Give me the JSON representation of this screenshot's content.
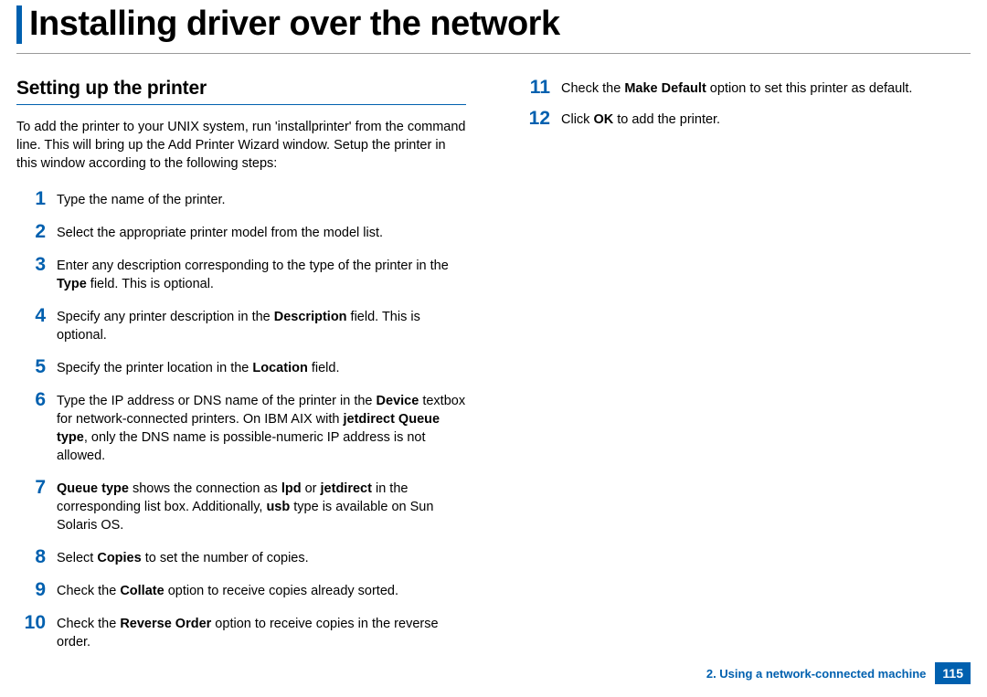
{
  "title": "Installing driver over the network",
  "accent_color": "#0060af",
  "section_heading": "Setting up the printer",
  "intro": "To add the printer to your UNIX system, run 'installprinter' from the command line. This will bring up the Add Printer Wizard window. Setup the printer in this window according to the following steps:",
  "steps_left": [
    {
      "n": "1",
      "html": "Type the name of the printer."
    },
    {
      "n": "2",
      "html": "Select the appropriate printer model from the model list."
    },
    {
      "n": "3",
      "html": "Enter any description corresponding to the type of the printer in the <b>Type</b> field. This is optional."
    },
    {
      "n": "4",
      "html": "Specify any printer description in the <b>Description</b> field. This is optional."
    },
    {
      "n": "5",
      "html": "Specify the printer location in the <b>Location</b> field."
    },
    {
      "n": "6",
      "html": "Type the IP address or DNS name of the printer in the <b>Device</b> textbox for network-connected printers. On IBM AIX with <b>jetdirect Queue type</b>, only the DNS name is possible-numeric IP address is not allowed."
    },
    {
      "n": "7",
      "html": "<b>Queue type</b> shows the connection as <b>lpd</b> or <b>jetdirect</b> in the corresponding list box. Additionally, <b>usb</b> type is available on Sun Solaris OS."
    },
    {
      "n": "8",
      "html": "Select <b>Copies</b> to set the number of copies."
    },
    {
      "n": "9",
      "html": "Check the <b>Collate</b> option to receive copies already sorted."
    },
    {
      "n": "10",
      "html": "Check the <b>Reverse Order</b> option to receive copies in the reverse order."
    }
  ],
  "steps_right": [
    {
      "n": "11",
      "html": "Check the <b>Make Default</b> option to set this printer as default."
    },
    {
      "n": "12",
      "html": "Click <b>OK</b> to add the printer."
    }
  ],
  "footer_chapter": "2.  Using a network-connected machine",
  "footer_page": "115"
}
